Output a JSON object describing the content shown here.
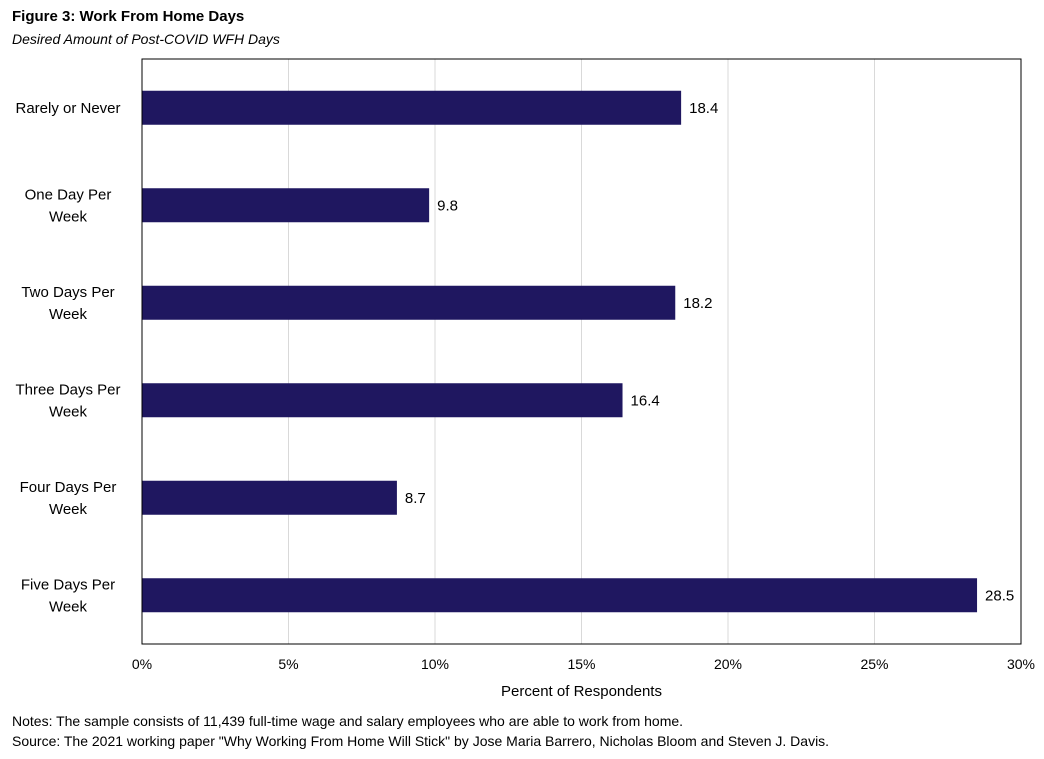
{
  "figure": {
    "title": "Figure 3: Work From Home Days",
    "subtitle": "Desired Amount of Post-COVID WFH Days"
  },
  "notes": {
    "notes_line": "Notes: The sample consists of 11,439 full-time wage and salary employees who are able to work from home.",
    "source_line": "Source: The 2021  working paper \"Why Working From Home Will Stick\" by Jose Maria Barrero, Nicholas Bloom and Steven J. Davis."
  },
  "chart_data": {
    "type": "bar",
    "orientation": "horizontal",
    "title": "Figure 3: Work From Home Days",
    "subtitle": "Desired Amount of Post-COVID WFH Days",
    "categories": [
      [
        "Rarely or Never"
      ],
      [
        "One Day Per",
        "Week"
      ],
      [
        "Two Days Per",
        "Week"
      ],
      [
        "Three Days Per",
        "Week"
      ],
      [
        "Four Days Per",
        "Week"
      ],
      [
        "Five Days Per",
        "Week"
      ]
    ],
    "values": [
      18.4,
      9.8,
      18.2,
      16.4,
      8.7,
      28.5
    ],
    "data_labels": [
      "18.4",
      "9.8",
      "18.2",
      "16.4",
      "8.7",
      "28.5"
    ],
    "xlabel": "Percent of Respondents",
    "ylabel": "",
    "xlim": [
      0,
      30
    ],
    "xticks": [
      0,
      5,
      10,
      15,
      20,
      25,
      30
    ],
    "xtick_labels": [
      "0%",
      "5%",
      "10%",
      "15%",
      "20%",
      "25%",
      "30%"
    ],
    "grid": "vertical",
    "legend": "none",
    "bar_color": "#1f1760",
    "grid_color": "#d9d9d9",
    "frame_color": "#000000"
  }
}
